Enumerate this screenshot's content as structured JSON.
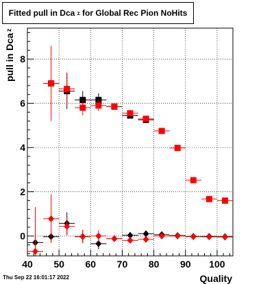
{
  "title": {
    "prefix": "Fitted pull in Dca",
    "subscript": "z",
    "suffix": " for Global Rec Pion NoHits"
  },
  "timestamp": "Thu Sep 22 16:01:17 2022",
  "chart_data": {
    "type": "scatter",
    "xlabel": "Quality",
    "ylabel": "pull in Dca z",
    "ylabel_main": "pull in Dca",
    "ylabel_sub": "z",
    "xlim": [
      40,
      105
    ],
    "ylim": [
      -0.9,
      9.4
    ],
    "xticks": [
      40,
      50,
      60,
      70,
      80,
      90,
      100
    ],
    "yticks": [
      0,
      2,
      4,
      6,
      8
    ],
    "grid": true,
    "series": [
      {
        "marker": "square",
        "color": "#000000",
        "x": [
          47.5,
          52.5,
          57.5,
          62.5,
          67.5,
          72.5,
          77.5
        ],
        "y": [
          6.9,
          6.55,
          6.15,
          6.15,
          5.85,
          5.45,
          5.25
        ],
        "yerr": [
          0.15,
          0.8,
          0.4,
          0.3,
          0.1,
          0.1,
          0.1
        ]
      },
      {
        "marker": "square",
        "color": "#ff0000",
        "x": [
          47.5,
          52.5,
          57.5,
          62.5,
          67.5,
          72.5,
          77.5,
          82.5,
          87.5,
          92.5,
          97.5,
          102.5
        ],
        "y": [
          6.9,
          6.65,
          5.8,
          5.9,
          5.85,
          5.55,
          5.3,
          4.75,
          3.98,
          2.52,
          1.67,
          1.6
        ],
        "yerr": [
          1.7,
          0.75,
          0.35,
          0.25,
          0.1,
          0.1,
          0.1,
          0.08,
          0.08,
          0.08,
          0.06,
          0.06
        ]
      },
      {
        "marker": "diamond",
        "color": "#000000",
        "x": [
          42.5,
          47.5,
          52.5,
          57.5,
          62.5,
          67.5,
          72.5,
          77.5,
          82.5,
          87.5,
          92.5,
          97.5,
          102.5
        ],
        "y": [
          -0.3,
          -0.03,
          0.57,
          -0.03,
          -0.35,
          -0.12,
          0.03,
          0.1,
          0.06,
          0.02,
          -0.02,
          -0.02,
          -0.03
        ],
        "yerr": [
          0.3,
          0.25,
          0.5,
          0.3,
          0.25,
          0.1,
          0.1,
          0.08,
          0.06,
          0.05,
          0.04,
          0.03,
          0.03
        ]
      },
      {
        "marker": "diamond",
        "color": "#ff0000",
        "x": [
          42.5,
          47.5,
          52.5,
          57.5,
          62.5,
          67.5,
          72.5,
          77.5,
          82.5,
          87.5,
          92.5,
          97.5,
          102.5
        ],
        "y": [
          -0.7,
          0.78,
          0.43,
          -0.02,
          0.0,
          -0.12,
          -0.2,
          -0.15,
          0.0,
          0.0,
          -0.03,
          -0.04,
          -0.05
        ],
        "yerr": [
          2.0,
          1.1,
          0.4,
          0.3,
          0.25,
          0.1,
          0.1,
          0.08,
          0.06,
          0.05,
          0.04,
          0.03,
          0.03
        ]
      }
    ]
  }
}
